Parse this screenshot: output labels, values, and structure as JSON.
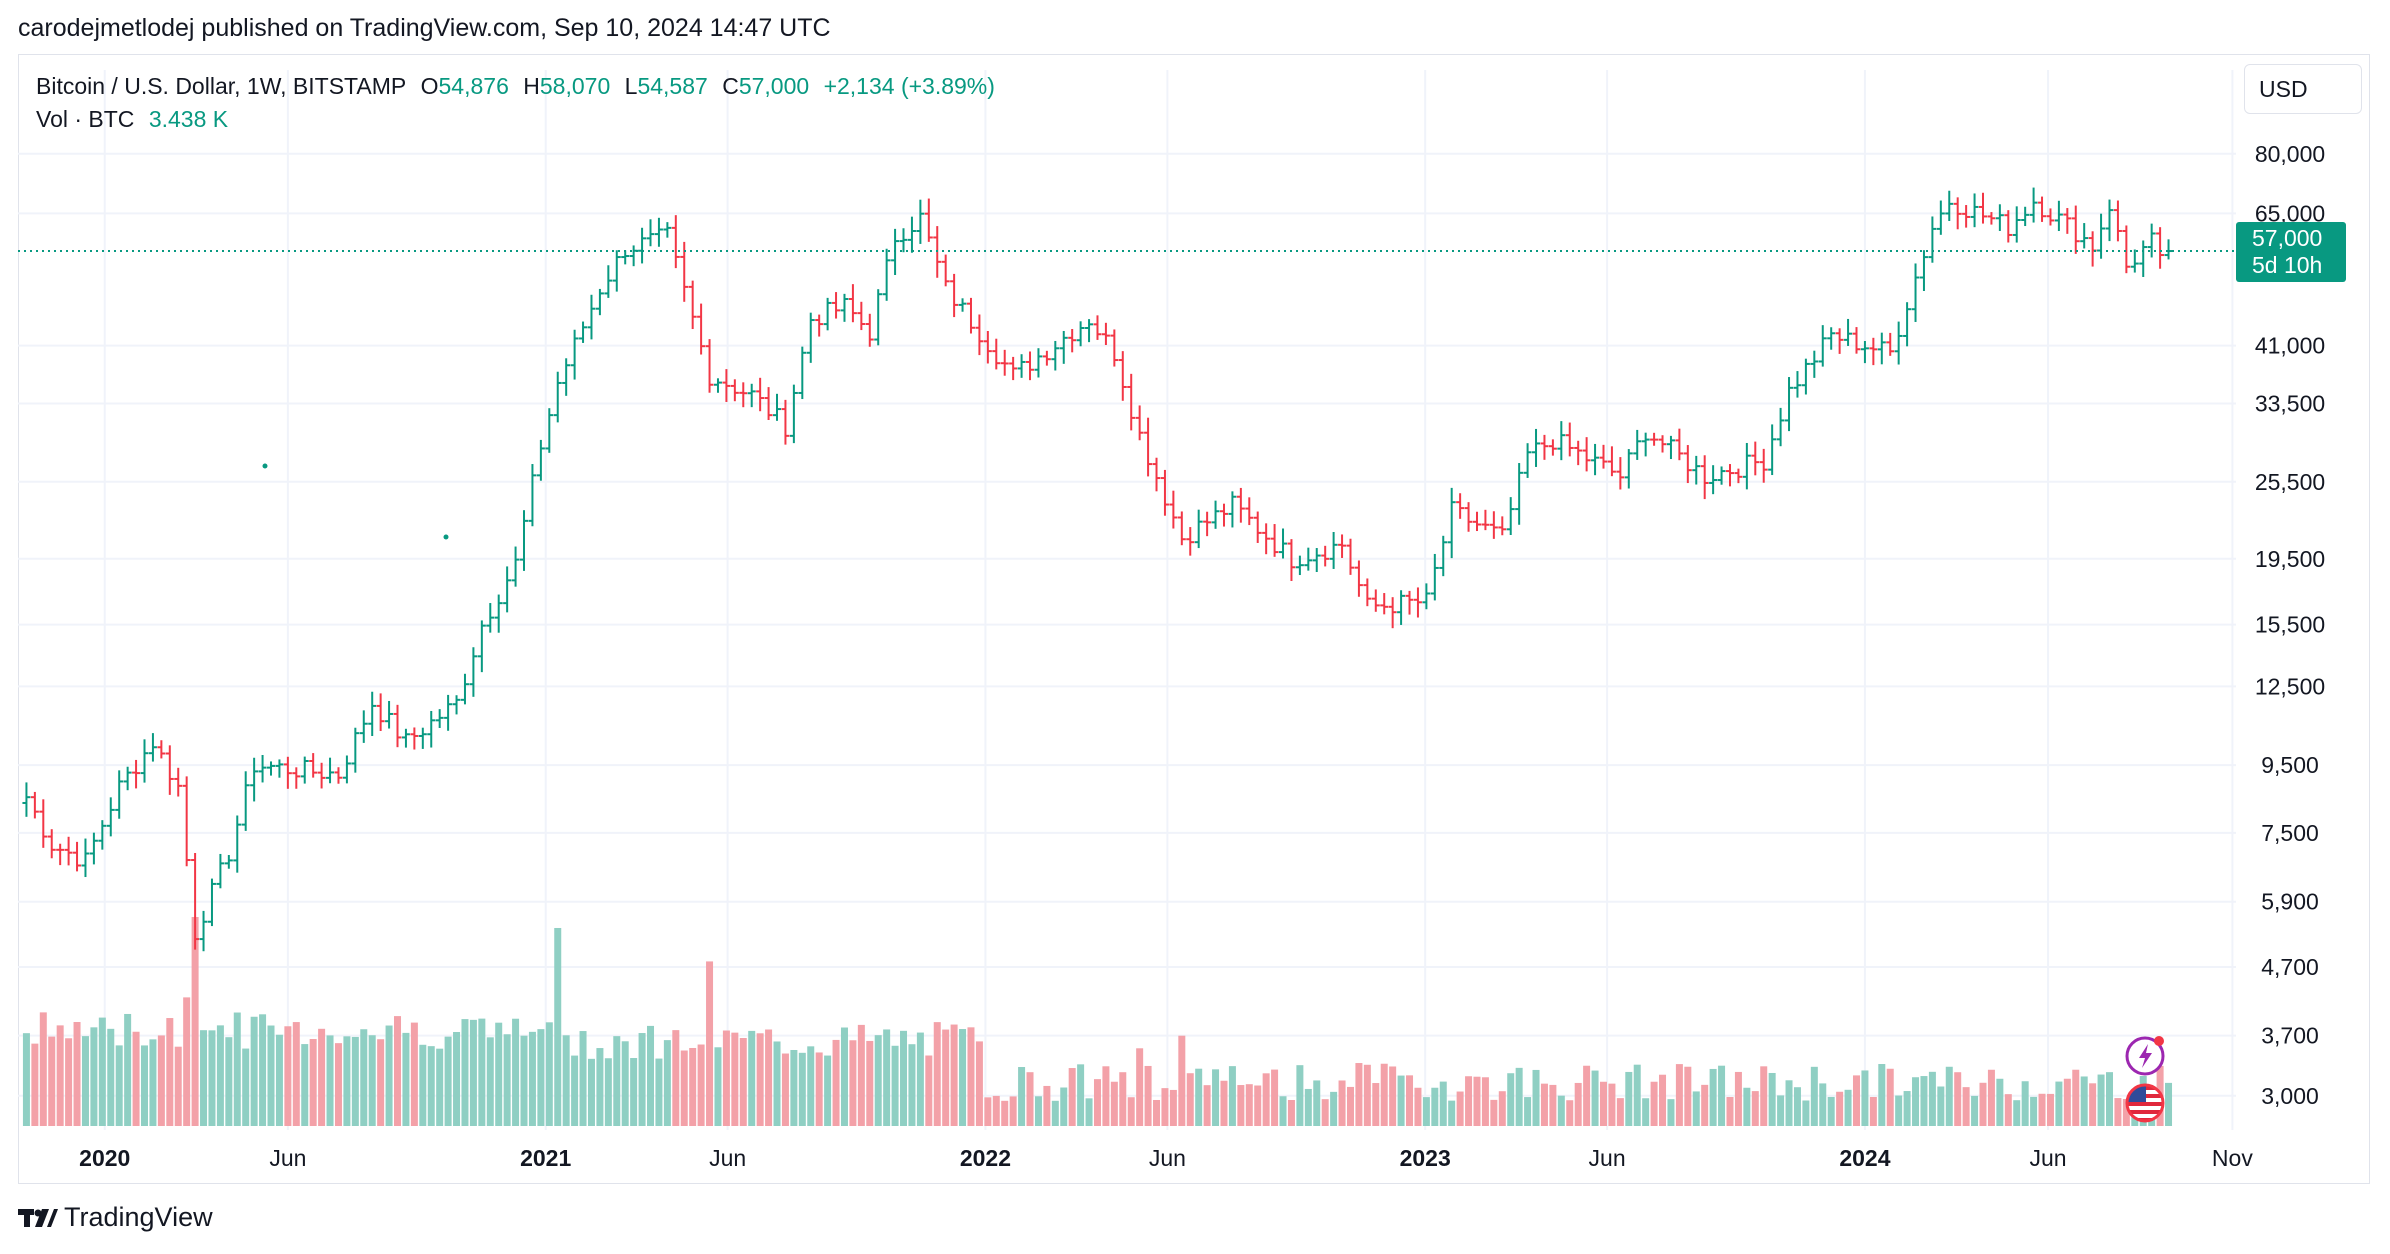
{
  "header": {
    "publisher_line": "carodejmetlodej published on TradingView.com, Sep 10, 2024 14:47 UTC"
  },
  "legend": {
    "symbol": "Bitcoin / U.S. Dollar, 1W, BITSTAMP",
    "o_label": "O",
    "o_value": "54,876",
    "h_label": "H",
    "h_value": "58,070",
    "l_label": "L",
    "l_value": "54,587",
    "c_label": "C",
    "c_value": "57,000",
    "change": "+2,134 (+3.89%)",
    "vol_label": "Vol · BTC",
    "vol_value": "3.438 K"
  },
  "currency": "USD",
  "last_price_tag": {
    "price": "57,000",
    "countdown": "5d 10h"
  },
  "brand": {
    "name": "TradingView"
  },
  "colors": {
    "up": "#089981",
    "down": "#f23645",
    "up_vol": "#8fcfc3",
    "down_vol": "#f3a1a8",
    "grid": "#f0f3fa",
    "text": "#131722"
  },
  "icons": [
    "lightning-icon",
    "us-flag-icon",
    "tradingview-logo-icon"
  ],
  "chart_data": {
    "type": "ohlc",
    "scale": "log",
    "grid": true,
    "ylim": [
      2700,
      90000
    ],
    "y_ticks": [
      80000,
      65000,
      41000,
      33500,
      25500,
      19500,
      15500,
      12500,
      9500,
      7500,
      5900,
      4700,
      3700,
      3000
    ],
    "y_tick_labels": [
      "80,000",
      "65,000",
      "41,000",
      "33,500",
      "25,500",
      "19,500",
      "15,500",
      "12,500",
      "9,500",
      "7,500",
      "5,900",
      "4,700",
      "3,700",
      "3,000"
    ],
    "x_ticks": [
      {
        "label": "2020",
        "date": "2020-01-01",
        "year": true
      },
      {
        "label": "Jun",
        "date": "2020-06-01",
        "year": false
      },
      {
        "label": "2021",
        "date": "2021-01-01",
        "year": true
      },
      {
        "label": "Jun",
        "date": "2021-06-01",
        "year": false
      },
      {
        "label": "2022",
        "date": "2022-01-01",
        "year": true
      },
      {
        "label": "Jun",
        "date": "2022-06-01",
        "year": false
      },
      {
        "label": "2023",
        "date": "2023-01-01",
        "year": true
      },
      {
        "label": "Jun",
        "date": "2023-06-01",
        "year": false
      },
      {
        "label": "2024",
        "date": "2024-01-01",
        "year": true
      },
      {
        "label": "Jun",
        "date": "2024-06-01",
        "year": false
      },
      {
        "label": "Nov",
        "date": "2024-11-01",
        "year": false
      }
    ],
    "xlim": [
      "2019-10-21",
      "2024-11-04"
    ],
    "last_price": 57000,
    "anchors": [
      [
        "2019-10-28",
        8500
      ],
      [
        "2019-11-18",
        7200
      ],
      [
        "2019-12-16",
        6800
      ],
      [
        "2020-01-13",
        8800
      ],
      [
        "2020-02-10",
        10300
      ],
      [
        "2020-03-02",
        8800
      ],
      [
        "2020-03-16",
        5300
      ],
      [
        "2020-04-13",
        7000
      ],
      [
        "2020-05-04",
        9500
      ],
      [
        "2020-07-13",
        9200
      ],
      [
        "2020-08-10",
        11800
      ],
      [
        "2020-09-07",
        10300
      ],
      [
        "2020-10-19",
        11800
      ],
      [
        "2020-11-09",
        15500
      ],
      [
        "2020-12-07",
        19200
      ],
      [
        "2020-12-28",
        29000
      ],
      [
        "2021-01-11",
        36000
      ],
      [
        "2021-02-15",
        50000
      ],
      [
        "2021-03-08",
        57500
      ],
      [
        "2021-04-12",
        60000
      ],
      [
        "2021-05-17",
        37000
      ],
      [
        "2021-06-21",
        34500
      ],
      [
        "2021-07-19",
        31000
      ],
      [
        "2021-08-09",
        45000
      ],
      [
        "2021-09-06",
        47000
      ],
      [
        "2021-09-27",
        43000
      ],
      [
        "2021-10-18",
        60000
      ],
      [
        "2021-11-08",
        64000
      ],
      [
        "2021-11-29",
        50000
      ],
      [
        "2022-01-24",
        37000
      ],
      [
        "2022-03-28",
        45000
      ],
      [
        "2022-04-18",
        40000
      ],
      [
        "2022-05-09",
        30000
      ],
      [
        "2022-06-13",
        21000
      ],
      [
        "2022-07-25",
        23500
      ],
      [
        "2022-09-12",
        19500
      ],
      [
        "2022-10-24",
        20500
      ],
      [
        "2022-11-14",
        16500
      ],
      [
        "2023-01-02",
        16800
      ],
      [
        "2023-01-23",
        23000
      ],
      [
        "2023-03-06",
        21000
      ],
      [
        "2023-03-27",
        28000
      ],
      [
        "2023-04-17",
        29500
      ],
      [
        "2023-06-12",
        26000
      ],
      [
        "2023-07-03",
        30500
      ],
      [
        "2023-08-21",
        26000
      ],
      [
        "2023-10-09",
        27500
      ],
      [
        "2023-10-30",
        35000
      ],
      [
        "2023-12-04",
        42500
      ],
      [
        "2024-01-22",
        40000
      ],
      [
        "2024-02-26",
        62000
      ],
      [
        "2024-03-11",
        68000
      ],
      [
        "2024-04-29",
        62000
      ],
      [
        "2024-05-20",
        68000
      ],
      [
        "2024-06-24",
        61000
      ],
      [
        "2024-07-08",
        58000
      ],
      [
        "2024-07-22",
        67000
      ],
      [
        "2024-08-05",
        54000
      ],
      [
        "2024-08-26",
        59000
      ],
      [
        "2024-09-02",
        54500
      ],
      [
        "2024-09-09",
        57000
      ]
    ],
    "volume_spikes": [
      [
        "2020-03-16",
        5
      ],
      [
        "2020-03-09",
        3
      ],
      [
        "2021-01-11",
        4.5
      ],
      [
        "2021-05-17",
        3.7
      ],
      [
        "2022-06-13",
        2
      ],
      [
        "2022-05-09",
        1.7
      ],
      [
        "2022-11-07",
        1.5
      ]
    ]
  }
}
